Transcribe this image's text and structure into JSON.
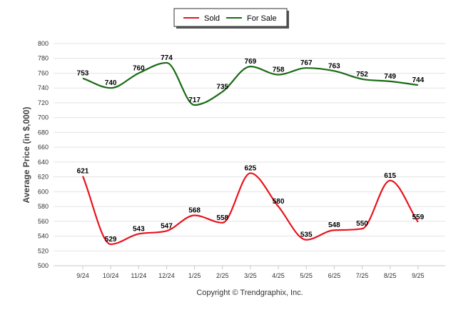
{
  "chart_data": {
    "type": "line",
    "title": "",
    "xlabel": "",
    "ylabel": "Average Price (in $,000)",
    "ylim": [
      500,
      800
    ],
    "yticks": [
      500,
      520,
      540,
      560,
      580,
      600,
      620,
      640,
      660,
      680,
      700,
      720,
      740,
      760,
      780,
      800
    ],
    "categories": [
      "9/24",
      "10/24",
      "11/24",
      "12/24",
      "1/25",
      "2/25",
      "3/25",
      "4/25",
      "5/25",
      "6/25",
      "7/25",
      "8/25",
      "9/25"
    ],
    "series": [
      {
        "name": "Sold",
        "color": "#e8141c",
        "values": [
          621,
          529,
          543,
          547,
          568,
          558,
          625,
          580,
          535,
          548,
          550,
          615,
          559
        ]
      },
      {
        "name": "For Sale",
        "color": "#1a6b14",
        "values": [
          753,
          740,
          760,
          774,
          717,
          735,
          769,
          758,
          767,
          763,
          752,
          749,
          744
        ]
      }
    ],
    "legend_position": "top-center",
    "grid": true
  },
  "footer": {
    "copyright": "Copyright © Trendgraphix, Inc."
  }
}
